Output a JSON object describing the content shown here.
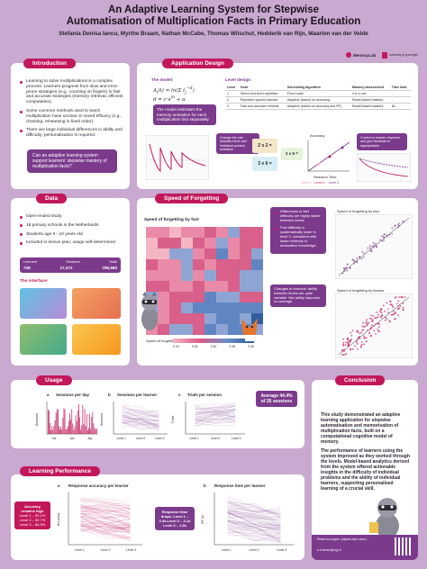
{
  "header": {
    "title_line1": "An Adaptive Learning System for Stepwise",
    "title_line2": "Automatisation of Multiplication Facts in Primary Education",
    "authors": "Stefania Denisa Iancu, Myrthe Braam, Nathan McCabe, Thomas Wilschut, Hedderik van Rijn, Maarten van der Velde",
    "logo1": "MemoryLab",
    "logo2": "university of groningen"
  },
  "introduction": {
    "pill": "Introduction",
    "bullets": [
      "Learning to solve multiplications is a complex process: Learners progress from slow and error-prone strategies (e.g., counting on fingers) to fast and accurate strategies (memory retrieval, efficient computation).",
      "Some common methods used to teach multiplication have unclear or mixed efficacy (e.g., chanting, rehearsing in fixed order).",
      "There are large individual differences in ability and difficulty; personalisation is required."
    ],
    "question": "Can an adaptive learning system support learners' stepwise mastery of multiplication facts?"
  },
  "application": {
    "pill": "Application Design",
    "model_label": "The model:",
    "level_label": "Level design:",
    "model_note": "The model estimates the memory activation for each multiplication fact separately.",
    "bubble_left": "Change the rule: Standard form and individual product activation",
    "bubble_right": "Control or answer response and give feedback to appropriately",
    "table_headers": [
      "Level",
      "Goal",
      "Scheduling algorithm",
      "Mastery assessment",
      "Time limit"
    ],
    "table_rows": [
      [
        "1",
        "Select and short repetition",
        "Fixed order",
        "4 in a row",
        "-"
      ],
      [
        "2",
        "Repeated spaced practice",
        "Adaptive (based on accuracy)",
        "Model-based mastery",
        "-"
      ],
      [
        "3",
        "Fast and accurate retrieval",
        "Adaptive (based on accuracy and RT)",
        "Model-based mastery",
        "8s"
      ]
    ],
    "fig_accuracy": "Accuracy",
    "fig_rt": "Reaction Time",
    "fig_legend": [
      "Level 1",
      "Level 2",
      "Level 3"
    ],
    "cards": [
      "2 x 2 =",
      "3 x 6 =",
      "2 x 5 ="
    ]
  },
  "data": {
    "pill": "Data",
    "bullets": [
      "Open-ended study",
      "18 primary schools in the Netherlands",
      "Students age 6 - 10 years old",
      "Included in lesson plan; usage self-determined"
    ],
    "stats_headers": [
      "Learners",
      "Sessions",
      "Trials"
    ],
    "stats_values": [
      "748",
      "17,371",
      "786,680"
    ],
    "interface_label": "The interface:"
  },
  "speed": {
    "pill": "Speed of Forgetting",
    "heatmap_title": "Speed of forgetting by fact",
    "colorbar_label": "Speed of forgetting",
    "colorbar_ticks": [
      "0.20",
      "0.25",
      "0.30",
      "0.35",
      "0.40"
    ],
    "notes": [
      "Differences in fact difficulty are highly stable between levels.",
      "Fact difficulty is systematically lower in level 3, consistent with faster retrieval of declarative knowledge."
    ],
    "note_box": "Changes in learners' ability between levels are quite variable. Not ability improves on average.",
    "scatter_top_title": "Speed of forgetting by fact",
    "scatter_bottom_title": "Speed of forgetting by learner"
  },
  "usage": {
    "pill": "Usage",
    "panel_a_title": "Sessions per day",
    "panel_a_letter": "a",
    "panel_a_y": "Sessions",
    "panel_a_x": [
      "Oct",
      "Jan",
      "Apr"
    ],
    "panel_b_title": "Sessions per learner",
    "panel_b_letter": "b",
    "panel_b_y": "Sessions",
    "panel_c_title": "Trials per session",
    "panel_c_letter": "c",
    "panel_c_y": "Trials",
    "levels": [
      "Level 1",
      "Level 2",
      "Level 3"
    ],
    "avg_box": "Average 44.4% of 26 sessions"
  },
  "performance": {
    "pill": "Learning Performance",
    "panel_a_title": "Response accuracy per learner",
    "panel_a_letter": "a",
    "panel_a_y": "Accuracy",
    "panel_b_title": "Response time per learner",
    "panel_b_letter": "b",
    "panel_b_y": "RT (s)",
    "levels": [
      "Level 1",
      "Level 2",
      "Level 3"
    ],
    "left_box_line1": "Accuracy",
    "left_box_line2": "remains high",
    "left_box_line3": "Level 1 – 95.1%",
    "left_box_line4": "Level 2 – 92.7%",
    "left_box_line5": "Level 3 – 86.5%",
    "mid_box": "Response time drops: Level 1 – 2.4s Level 2 – 2.1s Level 3 – 1.6s"
  },
  "conclusion": {
    "pill": "Conclusion",
    "p1": "This study demonstrated an adaptive learning application for stepwise automatisation and memorisation of multiplication facts, built on a computational cognitive model of memory.",
    "p2": "The performance of learners using the system improved as they worked through the levels. Model-based analytics derived from the system offered actionable insights in the difficulty of individual problems and the ability of individual learners, supporting personalised learning of a crucial skill.",
    "footer1": "Read our paper: papers.ssrn.com/...",
    "footer2": "s.d.iancu@rug.nl"
  },
  "colors": {
    "accent": "#c2185b",
    "purple": "#7b3a8c",
    "background": "#c9a9cf"
  }
}
